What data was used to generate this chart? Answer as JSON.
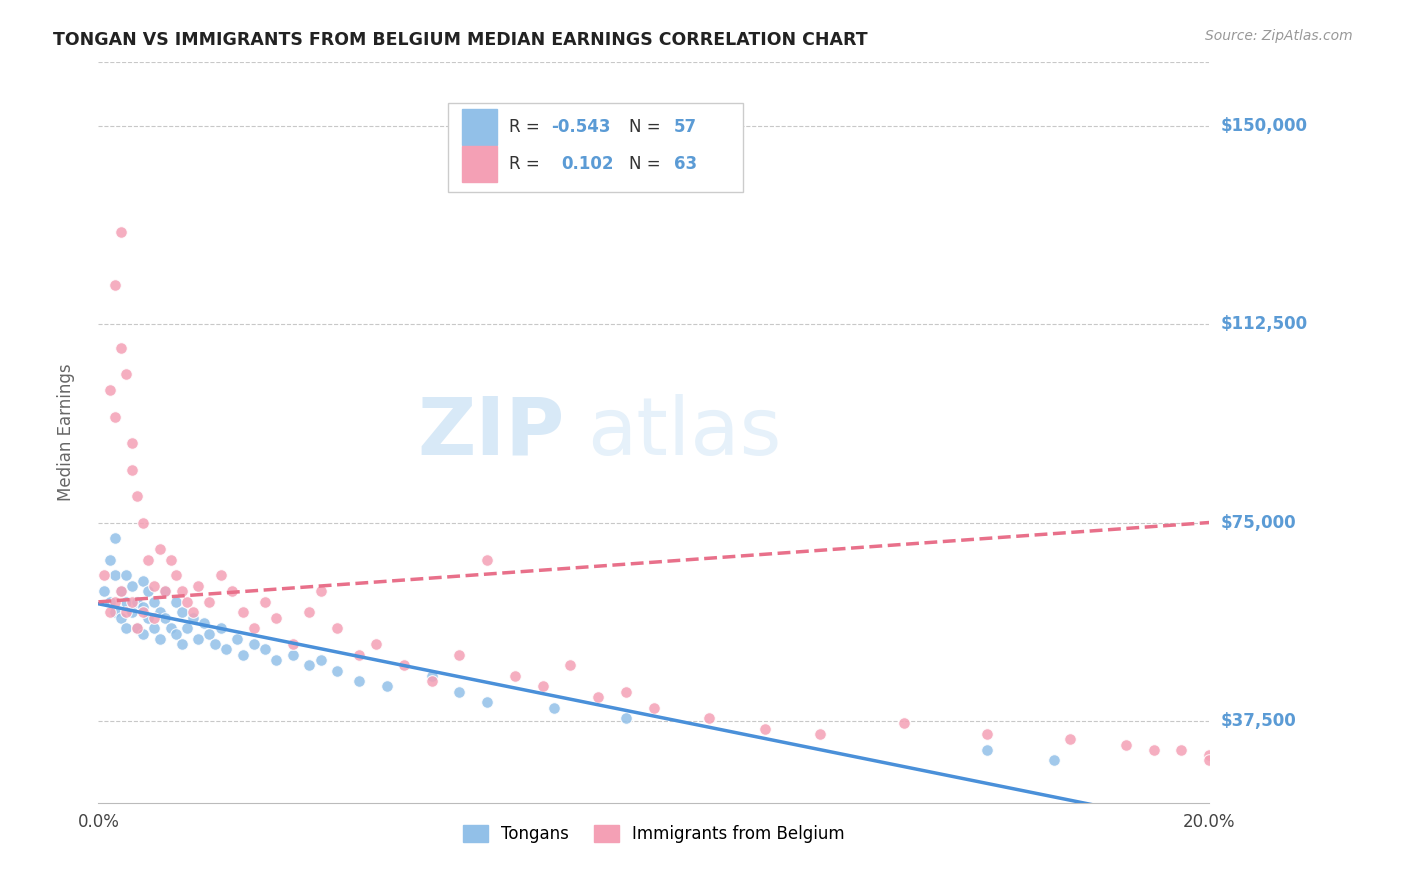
{
  "title": "TONGAN VS IMMIGRANTS FROM BELGIUM MEDIAN EARNINGS CORRELATION CHART",
  "source": "Source: ZipAtlas.com",
  "ylabel": "Median Earnings",
  "xlim": [
    0.0,
    0.2
  ],
  "ylim": [
    22000,
    162000
  ],
  "yticks": [
    37500,
    75000,
    112500,
    150000
  ],
  "ytick_labels": [
    "$37,500",
    "$75,000",
    "$112,500",
    "$150,000"
  ],
  "xticks": [
    0.0,
    0.05,
    0.1,
    0.15,
    0.2
  ],
  "xtick_labels": [
    "0.0%",
    "",
    "",
    "",
    "20.0%"
  ],
  "legend_label1": "Tongans",
  "legend_label2": "Immigrants from Belgium",
  "R1": -0.543,
  "N1": 57,
  "R2": 0.102,
  "N2": 63,
  "color_blue": "#92C0E8",
  "color_pink": "#F4A0B5",
  "color_line_blue": "#4A90D9",
  "color_line_pink": "#E8708A",
  "color_ytick": "#5B9BD5",
  "watermark_zip": "ZIP",
  "watermark_atlas": "atlas",
  "background_color": "#FFFFFF",
  "tongans_x": [
    0.001,
    0.002,
    0.002,
    0.003,
    0.003,
    0.003,
    0.004,
    0.004,
    0.005,
    0.005,
    0.005,
    0.006,
    0.006,
    0.007,
    0.007,
    0.008,
    0.008,
    0.008,
    0.009,
    0.009,
    0.01,
    0.01,
    0.011,
    0.011,
    0.012,
    0.012,
    0.013,
    0.014,
    0.014,
    0.015,
    0.015,
    0.016,
    0.017,
    0.018,
    0.019,
    0.02,
    0.021,
    0.022,
    0.023,
    0.025,
    0.026,
    0.028,
    0.03,
    0.032,
    0.035,
    0.038,
    0.04,
    0.043,
    0.047,
    0.052,
    0.06,
    0.065,
    0.07,
    0.082,
    0.095,
    0.16,
    0.172
  ],
  "tongans_y": [
    62000,
    68000,
    60000,
    65000,
    58000,
    72000,
    62000,
    57000,
    65000,
    60000,
    55000,
    63000,
    58000,
    60000,
    55000,
    64000,
    59000,
    54000,
    62000,
    57000,
    60000,
    55000,
    58000,
    53000,
    62000,
    57000,
    55000,
    60000,
    54000,
    58000,
    52000,
    55000,
    57000,
    53000,
    56000,
    54000,
    52000,
    55000,
    51000,
    53000,
    50000,
    52000,
    51000,
    49000,
    50000,
    48000,
    49000,
    47000,
    45000,
    44000,
    46000,
    43000,
    41000,
    40000,
    38000,
    32000,
    30000
  ],
  "belgium_x": [
    0.001,
    0.002,
    0.002,
    0.003,
    0.003,
    0.004,
    0.004,
    0.005,
    0.005,
    0.006,
    0.006,
    0.007,
    0.007,
    0.008,
    0.008,
    0.009,
    0.01,
    0.01,
    0.011,
    0.012,
    0.013,
    0.014,
    0.015,
    0.016,
    0.017,
    0.018,
    0.02,
    0.022,
    0.024,
    0.026,
    0.028,
    0.03,
    0.032,
    0.035,
    0.038,
    0.04,
    0.043,
    0.047,
    0.05,
    0.055,
    0.06,
    0.065,
    0.07,
    0.075,
    0.08,
    0.085,
    0.09,
    0.095,
    0.1,
    0.11,
    0.12,
    0.13,
    0.145,
    0.16,
    0.175,
    0.185,
    0.19,
    0.195,
    0.2,
    0.2,
    0.003,
    0.004,
    0.006
  ],
  "belgium_y": [
    65000,
    100000,
    58000,
    95000,
    60000,
    108000,
    62000,
    103000,
    58000,
    85000,
    60000,
    80000,
    55000,
    75000,
    58000,
    68000,
    63000,
    57000,
    70000,
    62000,
    68000,
    65000,
    62000,
    60000,
    58000,
    63000,
    60000,
    65000,
    62000,
    58000,
    55000,
    60000,
    57000,
    52000,
    58000,
    62000,
    55000,
    50000,
    52000,
    48000,
    45000,
    50000,
    68000,
    46000,
    44000,
    48000,
    42000,
    43000,
    40000,
    38000,
    36000,
    35000,
    37000,
    35000,
    34000,
    33000,
    32000,
    32000,
    31000,
    30000,
    120000,
    130000,
    90000
  ]
}
